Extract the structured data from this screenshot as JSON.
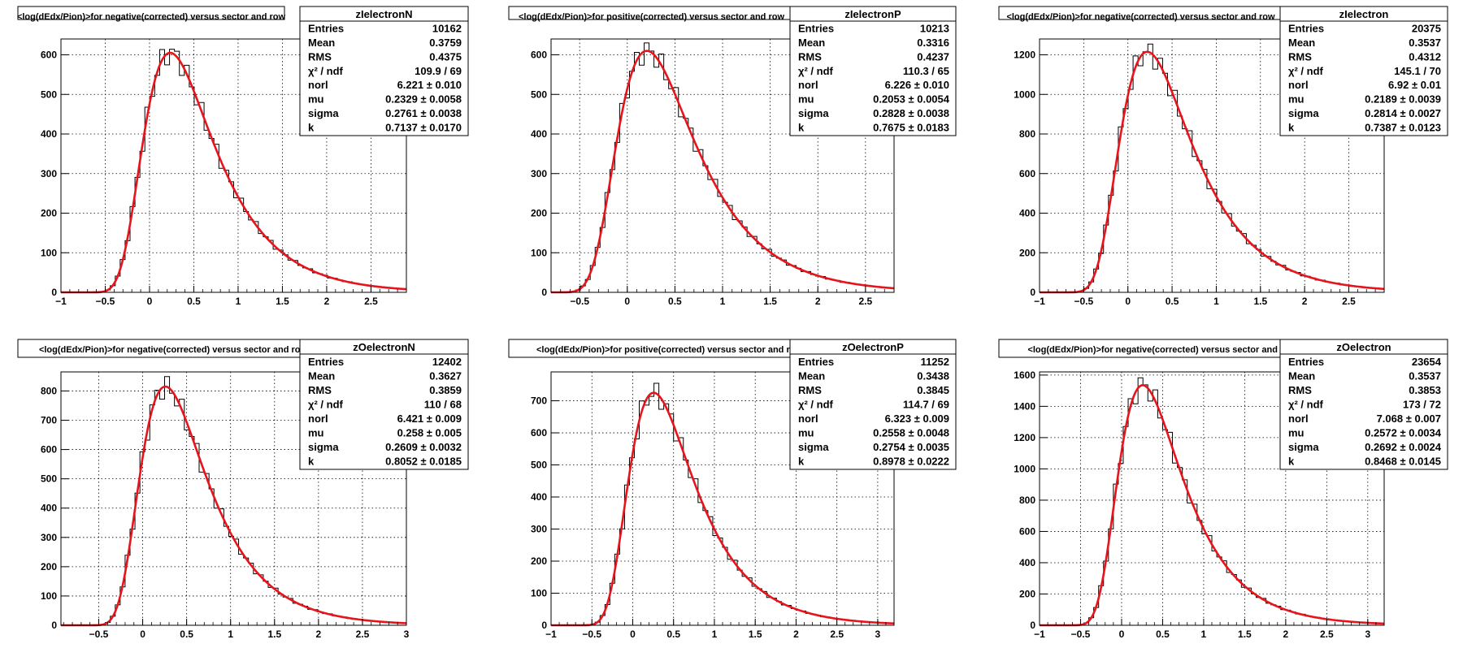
{
  "colors": {
    "histogram": "#000000",
    "fit": "#e8141c",
    "grid": "#000000",
    "stat_box_border": "#000000"
  },
  "chart_data": [
    {
      "type": "histogram",
      "title": "<log(dEdx/Pion)>for negative(corrected) versus sector and row",
      "name": "zIelectronN",
      "xlim": [
        -1,
        2.9
      ],
      "ylim": [
        0,
        640
      ],
      "xticks": [
        -1,
        -0.5,
        0,
        0.5,
        1,
        1.5,
        2,
        2.5
      ],
      "xtick_labels": [
        "−1",
        "−0.5",
        "0",
        "0.5",
        "1",
        "1.5",
        "2",
        "2.5"
      ],
      "yticks": [
        0,
        100,
        200,
        300,
        400,
        500,
        600
      ],
      "grid": true,
      "stats": [
        {
          "label": "Entries",
          "value": "10162"
        },
        {
          "label": "Mean",
          "value": "0.3759"
        },
        {
          "label": "RMS",
          "value": "0.4375"
        },
        {
          "label": "χ² / ndf",
          "value": "109.9 / 69"
        },
        {
          "label": "norl",
          "value": "6.221 ± 0.010"
        },
        {
          "label": "mu",
          "value": "0.2329 ± 0.0058"
        },
        {
          "label": "sigma",
          "value": "0.2761 ± 0.0038"
        },
        {
          "label": "k",
          "value": "0.7137 ± 0.0170"
        }
      ],
      "fit": {
        "peak": 605,
        "mu": 0.2329,
        "sigma": 0.2761,
        "k": 0.7137
      }
    },
    {
      "type": "histogram",
      "title": "<log(dEdx/Pion)>for positive(corrected) versus sector and row",
      "name": "zIelectronP",
      "xlim": [
        -0.8,
        2.8
      ],
      "ylim": [
        0,
        640
      ],
      "xticks": [
        -0.5,
        0,
        0.5,
        1,
        1.5,
        2,
        2.5
      ],
      "xtick_labels": [
        "−0.5",
        "0",
        "0.5",
        "1",
        "1.5",
        "2",
        "2.5"
      ],
      "yticks": [
        0,
        100,
        200,
        300,
        400,
        500,
        600
      ],
      "grid": true,
      "stats": [
        {
          "label": "Entries",
          "value": "10213"
        },
        {
          "label": "Mean",
          "value": "0.3316"
        },
        {
          "label": "RMS",
          "value": "0.4237"
        },
        {
          "label": "χ² / ndf",
          "value": "110.3 / 65"
        },
        {
          "label": "norl",
          "value": "6.226 ± 0.010"
        },
        {
          "label": "mu",
          "value": "0.2053 ± 0.0054"
        },
        {
          "label": "sigma",
          "value": "0.2828 ± 0.0038"
        },
        {
          "label": "k",
          "value": "0.7675 ± 0.0183"
        }
      ],
      "fit": {
        "peak": 610,
        "mu": 0.2053,
        "sigma": 0.2828,
        "k": 0.7675
      }
    },
    {
      "type": "histogram",
      "title": "<log(dEdx/Pion)>for negative(corrected) versus sector and row",
      "name": "zIelectron",
      "xlim": [
        -1,
        2.9
      ],
      "ylim": [
        0,
        1280
      ],
      "xticks": [
        -1,
        -0.5,
        0,
        0.5,
        1,
        1.5,
        2,
        2.5
      ],
      "xtick_labels": [
        "−1",
        "−0.5",
        "0",
        "0.5",
        "1",
        "1.5",
        "2",
        "2.5"
      ],
      "yticks": [
        0,
        200,
        400,
        600,
        800,
        1000,
        1200
      ],
      "grid": true,
      "stats": [
        {
          "label": "Entries",
          "value": "20375"
        },
        {
          "label": "Mean",
          "value": "0.3537"
        },
        {
          "label": "RMS",
          "value": "0.4312"
        },
        {
          "label": "χ² / ndf",
          "value": "145.1 / 70"
        },
        {
          "label": "norl",
          "value": "6.92 ± 0.01"
        },
        {
          "label": "mu",
          "value": "0.2189 ± 0.0039"
        },
        {
          "label": "sigma",
          "value": "0.2814 ± 0.0027"
        },
        {
          "label": "k",
          "value": "0.7387 ± 0.0123"
        }
      ],
      "fit": {
        "peak": 1215,
        "mu": 0.2189,
        "sigma": 0.2814,
        "k": 0.7387
      }
    },
    {
      "type": "histogram",
      "title": "<log(dEdx/Pion)>for negative(corrected) versus sector and row",
      "name": "zOelectronN",
      "xlim": [
        -0.93,
        3
      ],
      "ylim": [
        0,
        865
      ],
      "xticks": [
        -0.5,
        0,
        0.5,
        1,
        1.5,
        2,
        2.5,
        3
      ],
      "xtick_labels": [
        "−0.5",
        "0",
        "0.5",
        "1",
        "1.5",
        "2",
        "2.5",
        "3"
      ],
      "yticks": [
        0,
        100,
        200,
        300,
        400,
        500,
        600,
        700,
        800
      ],
      "grid": true,
      "stats": [
        {
          "label": "Entries",
          "value": "12402"
        },
        {
          "label": "Mean",
          "value": "0.3627"
        },
        {
          "label": "RMS",
          "value": "0.3859"
        },
        {
          "label": "χ² / ndf",
          "value": "110 / 68"
        },
        {
          "label": "norl",
          "value": "6.421 ± 0.009"
        },
        {
          "label": "mu",
          "value": "0.258 ± 0.005"
        },
        {
          "label": "sigma",
          "value": "0.2609 ± 0.0032"
        },
        {
          "label": "k",
          "value": "0.8052 ± 0.0185"
        }
      ],
      "fit": {
        "peak": 815,
        "mu": 0.258,
        "sigma": 0.2609,
        "k": 0.8052
      }
    },
    {
      "type": "histogram",
      "title": "<log(dEdx/Pion)>for positive(corrected) versus sector and row",
      "name": "zOelectronP",
      "xlim": [
        -1,
        3.2
      ],
      "ylim": [
        0,
        790
      ],
      "xticks": [
        -1,
        -0.5,
        0,
        0.5,
        1,
        1.5,
        2,
        2.5,
        3
      ],
      "xtick_labels": [
        "−1",
        "−0.5",
        "0",
        "0.5",
        "1",
        "1.5",
        "2",
        "2.5",
        "3"
      ],
      "yticks": [
        0,
        100,
        200,
        300,
        400,
        500,
        600,
        700
      ],
      "grid": true,
      "stats": [
        {
          "label": "Entries",
          "value": "11252"
        },
        {
          "label": "Mean",
          "value": "0.3438"
        },
        {
          "label": "RMS",
          "value": "0.3845"
        },
        {
          "label": "χ² / ndf",
          "value": "114.7 / 69"
        },
        {
          "label": "norl",
          "value": "6.323 ± 0.009"
        },
        {
          "label": "mu",
          "value": "0.2558 ± 0.0048"
        },
        {
          "label": "sigma",
          "value": "0.2754 ± 0.0035"
        },
        {
          "label": "k",
          "value": "0.8978 ± 0.0222"
        }
      ],
      "fit": {
        "peak": 725,
        "mu": 0.2558,
        "sigma": 0.2754,
        "k": 0.8978
      }
    },
    {
      "type": "histogram",
      "title": "<log(dEdx/Pion)>for negative(corrected) versus sector and row",
      "name": "zOelectron",
      "xlim": [
        -1,
        3.2
      ],
      "ylim": [
        0,
        1620
      ],
      "xticks": [
        -1,
        -0.5,
        0,
        0.5,
        1,
        1.5,
        2,
        2.5,
        3
      ],
      "xtick_labels": [
        "−1",
        "−0.5",
        "0",
        "0.5",
        "1",
        "1.5",
        "2",
        "2.5",
        "3"
      ],
      "yticks": [
        0,
        200,
        400,
        600,
        800,
        1000,
        1200,
        1400,
        1600
      ],
      "grid": true,
      "stats": [
        {
          "label": "Entries",
          "value": "23654"
        },
        {
          "label": "Mean",
          "value": "0.3537"
        },
        {
          "label": "RMS",
          "value": "0.3853"
        },
        {
          "label": "χ² / ndf",
          "value": "173 / 72"
        },
        {
          "label": "norl",
          "value": "7.068 ± 0.007"
        },
        {
          "label": "mu",
          "value": "0.2572 ± 0.0034"
        },
        {
          "label": "sigma",
          "value": "0.2692 ± 0.0024"
        },
        {
          "label": "k",
          "value": "0.8468 ± 0.0145"
        }
      ],
      "fit": {
        "peak": 1535,
        "mu": 0.2572,
        "sigma": 0.2692,
        "k": 0.8468
      }
    }
  ]
}
